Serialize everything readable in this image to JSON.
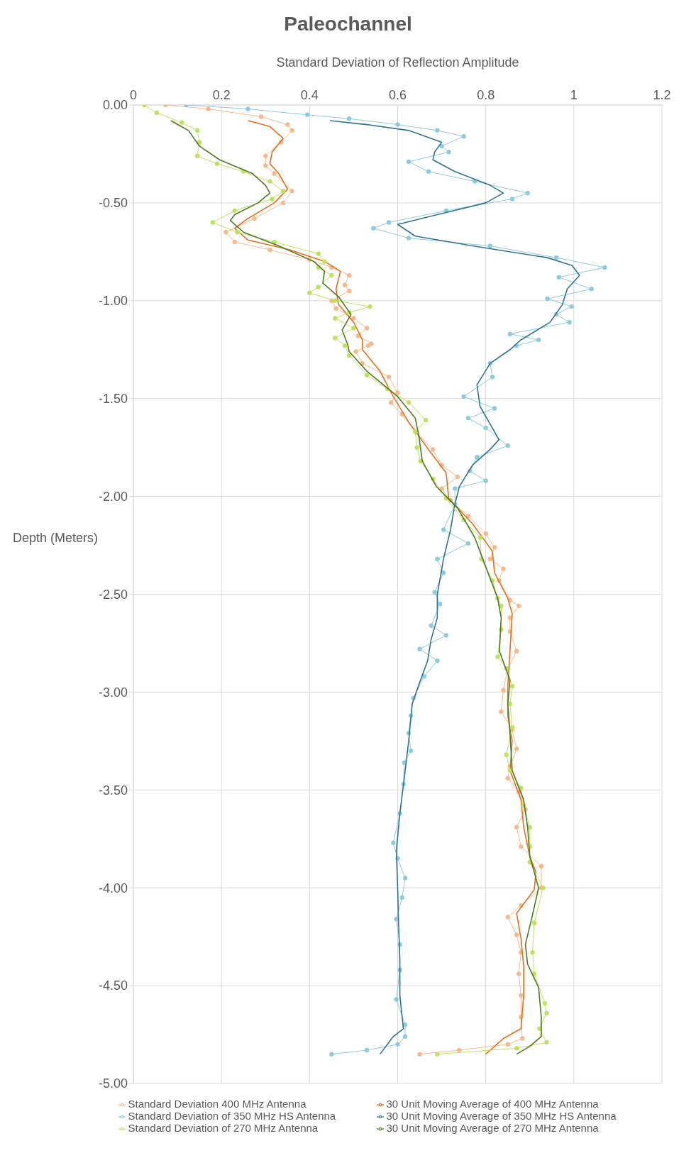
{
  "chart_data": {
    "type": "line",
    "title": "Paleochannel",
    "xlabel": "Standard Deviation of Reflection Amplitude",
    "ylabel": "Depth (Meters)",
    "xlim": [
      0,
      1.2
    ],
    "xticks": [
      0,
      0.2,
      0.4,
      0.6,
      0.8,
      1,
      1.2
    ],
    "ylim": [
      -5,
      0
    ],
    "yticks": [
      {
        "value": 0,
        "label": "0.00"
      },
      {
        "value": -0.5,
        "label": "-0.50"
      },
      {
        "value": -1,
        "label": "-1.00"
      },
      {
        "value": -1.5,
        "label": "-1.50"
      },
      {
        "value": -2,
        "label": "-2.00"
      },
      {
        "value": -2.5,
        "label": "-2.50"
      },
      {
        "value": -3,
        "label": "-3.00"
      },
      {
        "value": -3.5,
        "label": "-3.50"
      },
      {
        "value": -4,
        "label": "-4.00"
      },
      {
        "value": -4.5,
        "label": "-4.50"
      },
      {
        "value": -5,
        "label": "-5.00"
      }
    ],
    "grid": true,
    "legend": "bottom",
    "line_style": "solid",
    "series": [
      {
        "name": "Standard Deviation 400 MHz Antenna",
        "color": "#f8b98a",
        "marker": "circle",
        "x": [
          0.073,
          0.17,
          0.29,
          0.35,
          0.36,
          0.335,
          0.3,
          0.3,
          0.32,
          0.36,
          0.34,
          0.275,
          0.21,
          0.23,
          0.31,
          0.4,
          0.45,
          0.49,
          0.48,
          0.49,
          0.45,
          0.46,
          0.5,
          0.53,
          0.51,
          0.54,
          0.533,
          0.505,
          0.52,
          0.58,
          0.6,
          0.585,
          0.61,
          0.64,
          0.68,
          0.7,
          0.736,
          0.7,
          0.72,
          0.76,
          0.8,
          0.82,
          0.81,
          0.84,
          0.83,
          0.855,
          0.875,
          0.855,
          0.855,
          0.87,
          0.85,
          0.84,
          0.835,
          0.86,
          0.87,
          0.855,
          0.85,
          0.875,
          0.89,
          0.87,
          0.88,
          0.926,
          0.926,
          0.88,
          0.85,
          0.87,
          0.88,
          0.875,
          0.88,
          0.88,
          0.883,
          0.85,
          0.74,
          0.65
        ],
        "values": [
          0,
          -0.02,
          -0.06,
          -0.1,
          -0.13,
          -0.19,
          -0.26,
          -0.31,
          -0.35,
          -0.44,
          -0.5,
          -0.58,
          -0.65,
          -0.7,
          -0.74,
          -0.79,
          -0.83,
          -0.87,
          -0.92,
          -0.95,
          -1.0,
          -1.04,
          -1.09,
          -1.14,
          -1.18,
          -1.22,
          -1.23,
          -1.26,
          -1.32,
          -1.39,
          -1.47,
          -1.52,
          -1.58,
          -1.67,
          -1.76,
          -1.84,
          -1.9,
          -1.96,
          -2.02,
          -2.1,
          -2.19,
          -2.26,
          -2.32,
          -2.37,
          -2.43,
          -2.53,
          -2.56,
          -2.62,
          -2.69,
          -2.79,
          -2.88,
          -2.99,
          -3.1,
          -3.19,
          -3.29,
          -3.38,
          -3.44,
          -3.51,
          -3.6,
          -3.69,
          -3.79,
          -3.89,
          -4.0,
          -4.09,
          -4.15,
          -4.24,
          -4.33,
          -4.44,
          -4.55,
          -4.66,
          -4.77,
          -4.8,
          -4.83,
          -4.85
        ]
      },
      {
        "name": "30 Unit Moving Average of 400 MHz Antenna",
        "color": "#e86f1f",
        "marker": "none",
        "x": [
          0.26,
          0.31,
          0.34,
          0.315,
          0.31,
          0.33,
          0.35,
          0.32,
          0.26,
          0.23,
          0.26,
          0.355,
          0.435,
          0.47,
          0.46,
          0.466,
          0.5,
          0.52,
          0.52,
          0.56,
          0.59,
          0.625,
          0.67,
          0.71,
          0.716,
          0.77,
          0.815,
          0.82,
          0.85,
          0.86,
          0.855,
          0.85,
          0.85,
          0.86,
          0.855,
          0.88,
          0.886,
          0.9,
          0.914,
          0.91,
          0.87,
          0.88,
          0.886,
          0.886,
          0.88,
          0.84,
          0.8
        ],
        "values": [
          -0.08,
          -0.11,
          -0.17,
          -0.24,
          -0.3,
          -0.35,
          -0.43,
          -0.5,
          -0.58,
          -0.63,
          -0.69,
          -0.74,
          -0.8,
          -0.85,
          -0.94,
          -1.02,
          -1.11,
          -1.2,
          -1.25,
          -1.36,
          -1.49,
          -1.62,
          -1.76,
          -1.88,
          -2.01,
          -2.14,
          -2.28,
          -2.39,
          -2.52,
          -2.6,
          -2.79,
          -2.97,
          -3.12,
          -3.25,
          -3.4,
          -3.55,
          -3.69,
          -3.84,
          -3.92,
          -4.01,
          -4.13,
          -4.26,
          -4.4,
          -4.55,
          -4.72,
          -4.77,
          -4.85
        ]
      },
      {
        "name": "Standard Deviation of 350 MHz HS Antenna",
        "color": "#8ccbdd",
        "marker": "circle",
        "x": [
          0.12,
          0.26,
          0.395,
          0.49,
          0.6,
          0.69,
          0.75,
          0.7,
          0.716,
          0.625,
          0.67,
          0.775,
          0.895,
          0.86,
          0.71,
          0.58,
          0.545,
          0.625,
          0.81,
          0.96,
          1.07,
          0.966,
          1.04,
          0.94,
          0.995,
          0.96,
          0.99,
          0.855,
          0.92,
          0.87,
          0.81,
          0.815,
          0.75,
          0.82,
          0.76,
          0.8,
          0.85,
          0.78,
          0.764,
          0.8,
          0.73,
          0.73,
          0.704,
          0.76,
          0.69,
          0.704,
          0.684,
          0.696,
          0.676,
          0.71,
          0.65,
          0.69,
          0.66,
          0.636,
          0.63,
          0.625,
          0.63,
          0.615,
          0.613,
          0.605,
          0.59,
          0.6,
          0.617,
          0.61,
          0.597,
          0.605,
          0.605,
          0.597,
          0.617,
          0.617,
          0.6,
          0.53,
          0.45
        ],
        "values": [
          0,
          -0.02,
          -0.05,
          -0.07,
          -0.1,
          -0.13,
          -0.16,
          -0.21,
          -0.24,
          -0.29,
          -0.34,
          -0.39,
          -0.45,
          -0.48,
          -0.54,
          -0.6,
          -0.63,
          -0.68,
          -0.72,
          -0.78,
          -0.83,
          -0.88,
          -0.94,
          -0.99,
          -1.03,
          -1.07,
          -1.11,
          -1.17,
          -1.2,
          -1.23,
          -1.32,
          -1.39,
          -1.49,
          -1.55,
          -1.6,
          -1.65,
          -1.74,
          -1.8,
          -1.87,
          -1.92,
          -1.96,
          -2.04,
          -2.17,
          -2.24,
          -2.32,
          -2.39,
          -2.49,
          -2.55,
          -2.66,
          -2.71,
          -2.78,
          -2.84,
          -2.92,
          -3.03,
          -3.12,
          -3.21,
          -3.3,
          -3.36,
          -3.47,
          -3.62,
          -3.77,
          -3.85,
          -3.95,
          -4.05,
          -4.16,
          -4.29,
          -4.42,
          -4.57,
          -4.7,
          -4.76,
          -4.8,
          -4.83,
          -4.85
        ]
      },
      {
        "name": "30 Unit Moving Average of 350 MHz HS Antenna",
        "color": "#2e7590",
        "marker": "none",
        "x": [
          0.446,
          0.53,
          0.625,
          0.7,
          0.684,
          0.68,
          0.73,
          0.81,
          0.84,
          0.8,
          0.69,
          0.6,
          0.64,
          0.77,
          0.94,
          0.996,
          1.013,
          0.985,
          0.974,
          0.946,
          0.88,
          0.855,
          0.81,
          0.78,
          0.787,
          0.815,
          0.83,
          0.81,
          0.77,
          0.74,
          0.73,
          0.72,
          0.704,
          0.69,
          0.69,
          0.676,
          0.668,
          0.65,
          0.633,
          0.625,
          0.615,
          0.605,
          0.597,
          0.6,
          0.602,
          0.605,
          0.605,
          0.613,
          0.59,
          0.56
        ],
        "values": [
          -0.08,
          -0.1,
          -0.13,
          -0.19,
          -0.24,
          -0.28,
          -0.34,
          -0.41,
          -0.45,
          -0.5,
          -0.56,
          -0.61,
          -0.67,
          -0.72,
          -0.78,
          -0.82,
          -0.87,
          -0.94,
          -1.02,
          -1.11,
          -1.2,
          -1.25,
          -1.32,
          -1.43,
          -1.54,
          -1.65,
          -1.71,
          -1.76,
          -1.84,
          -1.95,
          -2.04,
          -2.17,
          -2.32,
          -2.5,
          -2.62,
          -2.73,
          -2.84,
          -2.95,
          -3.06,
          -3.25,
          -3.44,
          -3.62,
          -3.81,
          -4.0,
          -4.18,
          -4.37,
          -4.55,
          -4.72,
          -4.76,
          -4.85
        ]
      },
      {
        "name": "Standard Deviation of 270 MHz Antenna",
        "color": "#bde25b",
        "marker": "circle",
        "x": [
          0.025,
          0.053,
          0.11,
          0.145,
          0.15,
          0.145,
          0.19,
          0.25,
          0.31,
          0.34,
          0.315,
          0.23,
          0.18,
          0.236,
          0.32,
          0.42,
          0.434,
          0.42,
          0.45,
          0.42,
          0.4,
          0.458,
          0.537,
          0.49,
          0.458,
          0.5,
          0.458,
          0.48,
          0.49,
          0.53,
          0.577,
          0.625,
          0.664,
          0.64,
          0.644,
          0.652,
          0.68,
          0.71,
          0.75,
          0.787,
          0.79,
          0.815,
          0.827,
          0.835,
          0.835,
          0.827,
          0.847,
          0.86,
          0.855,
          0.86,
          0.847,
          0.855,
          0.88,
          0.886,
          0.9,
          0.9,
          0.9,
          0.93,
          0.91,
          0.906,
          0.91,
          0.934,
          0.938,
          0.922,
          0.938,
          0.87,
          0.69
        ],
        "values": [
          0,
          -0.04,
          -0.09,
          -0.13,
          -0.19,
          -0.26,
          -0.3,
          -0.34,
          -0.39,
          -0.44,
          -0.48,
          -0.54,
          -0.6,
          -0.65,
          -0.7,
          -0.76,
          -0.8,
          -0.83,
          -0.87,
          -0.93,
          -0.96,
          -1.0,
          -1.03,
          -1.06,
          -1.09,
          -1.14,
          -1.19,
          -1.23,
          -1.28,
          -1.38,
          -1.45,
          -1.52,
          -1.61,
          -1.67,
          -1.75,
          -1.82,
          -1.91,
          -2.01,
          -2.12,
          -2.21,
          -2.32,
          -2.43,
          -2.52,
          -2.56,
          -2.68,
          -2.82,
          -2.88,
          -2.97,
          -3.06,
          -3.18,
          -3.32,
          -3.4,
          -3.49,
          -3.58,
          -3.69,
          -3.79,
          -3.87,
          -4.0,
          -4.18,
          -4.33,
          -4.44,
          -4.59,
          -4.64,
          -4.72,
          -4.79,
          -4.82,
          -4.85
        ]
      },
      {
        "name": "30 Unit Moving Average of 270 MHz Antenna",
        "color": "#4f7a23",
        "marker": "none",
        "x": [
          0.085,
          0.125,
          0.15,
          0.196,
          0.27,
          0.3,
          0.31,
          0.283,
          0.23,
          0.22,
          0.25,
          0.33,
          0.41,
          0.434,
          0.43,
          0.466,
          0.494,
          0.474,
          0.486,
          0.49,
          0.53,
          0.6,
          0.64,
          0.648,
          0.656,
          0.688,
          0.736,
          0.775,
          0.8,
          0.827,
          0.835,
          0.831,
          0.855,
          0.85,
          0.855,
          0.86,
          0.886,
          0.895,
          0.9,
          0.91,
          0.92,
          0.906,
          0.89,
          0.895,
          0.92,
          0.926,
          0.926,
          0.9,
          0.87
        ],
        "values": [
          -0.08,
          -0.13,
          -0.21,
          -0.28,
          -0.35,
          -0.41,
          -0.45,
          -0.5,
          -0.56,
          -0.59,
          -0.65,
          -0.72,
          -0.8,
          -0.85,
          -0.91,
          -0.98,
          -1.07,
          -1.15,
          -1.22,
          -1.26,
          -1.36,
          -1.49,
          -1.6,
          -1.69,
          -1.82,
          -1.95,
          -2.06,
          -2.21,
          -2.36,
          -2.52,
          -2.62,
          -2.79,
          -2.94,
          -3.06,
          -3.21,
          -3.4,
          -3.55,
          -3.69,
          -3.84,
          -3.92,
          -4.0,
          -4.14,
          -4.29,
          -4.39,
          -4.51,
          -4.66,
          -4.76,
          -4.81,
          -4.85
        ]
      }
    ]
  }
}
